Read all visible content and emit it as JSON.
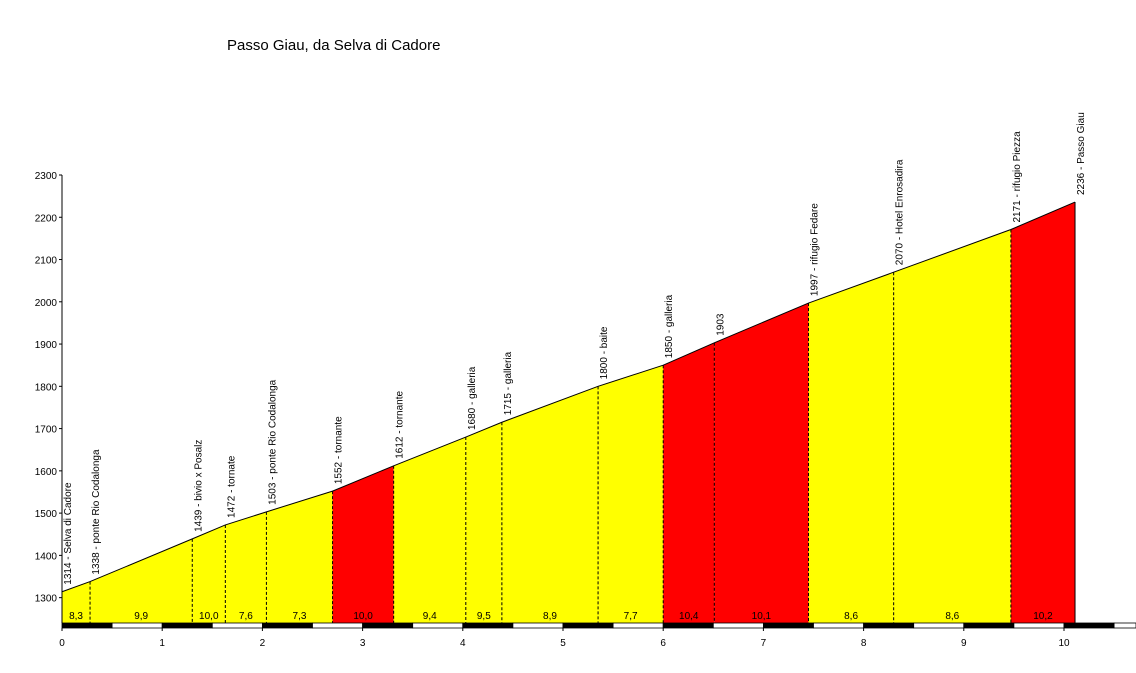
{
  "chart_data": {
    "type": "area",
    "title": "Passo Giau, da Selva di Cadore",
    "xlabel": "",
    "ylabel": "",
    "xlim": [
      0,
      10.7
    ],
    "ylim": [
      1240,
      2300
    ],
    "x_ticks": [
      "0",
      "1",
      "2",
      "3",
      "4",
      "5",
      "6",
      "7",
      "8",
      "9",
      "10"
    ],
    "y_ticks": [
      "1300",
      "1400",
      "1500",
      "1600",
      "1700",
      "1800",
      "1900",
      "2000",
      "2100",
      "2200",
      "2300"
    ],
    "points": [
      {
        "x": 0.0,
        "y": 1314,
        "label": "1314 - Selva di Cadore"
      },
      {
        "x": 0.28,
        "y": 1338,
        "label": "1338 - ponte Rio Codalonga"
      },
      {
        "x": 1.3,
        "y": 1439,
        "label": "1439 - bivio x Posalz"
      },
      {
        "x": 1.63,
        "y": 1472,
        "label": "1472 - tornate"
      },
      {
        "x": 2.04,
        "y": 1503,
        "label": "1503 - ponte Rio Codalonga"
      },
      {
        "x": 2.7,
        "y": 1552,
        "label": "1552 - tornante"
      },
      {
        "x": 3.31,
        "y": 1612,
        "label": "1612 - tornante"
      },
      {
        "x": 4.03,
        "y": 1680,
        "label": "1680 - galleria"
      },
      {
        "x": 4.39,
        "y": 1715,
        "label": "1715 - galleria"
      },
      {
        "x": 5.35,
        "y": 1800,
        "label": "1800 - baite"
      },
      {
        "x": 6.0,
        "y": 1850,
        "label": "1850 - galleria"
      },
      {
        "x": 6.51,
        "y": 1903,
        "label": "1903"
      },
      {
        "x": 7.45,
        "y": 1997,
        "label": "1997 - rifugio Fedare"
      },
      {
        "x": 8.3,
        "y": 2070,
        "label": "2070 - Hotel Enrosadira"
      },
      {
        "x": 9.47,
        "y": 2171,
        "label": "2171 - rifugio Piezza"
      },
      {
        "x": 10.11,
        "y": 2236,
        "label": "2236 - Passo Giau"
      }
    ],
    "segments": [
      {
        "gradient": "8,3",
        "color": "#ffff00"
      },
      {
        "gradient": "9,9",
        "color": "#ffff00"
      },
      {
        "gradient": "10,0",
        "color": "#ffff00"
      },
      {
        "gradient": "7,6",
        "color": "#ffff00"
      },
      {
        "gradient": "7,3",
        "color": "#ffff00"
      },
      {
        "gradient": "10,0",
        "color": "#ff0000"
      },
      {
        "gradient": "9,4",
        "color": "#ffff00"
      },
      {
        "gradient": "9,5",
        "color": "#ffff00"
      },
      {
        "gradient": "8,9",
        "color": "#ffff00"
      },
      {
        "gradient": "7,7",
        "color": "#ffff00"
      },
      {
        "gradient": "10,4",
        "color": "#ff0000"
      },
      {
        "gradient": "10,1",
        "color": "#ff0000"
      },
      {
        "gradient": "8,6",
        "color": "#ffff00"
      },
      {
        "gradient": "8,6",
        "color": "#ffff00"
      },
      {
        "gradient": "10,2",
        "color": "#ff0000"
      }
    ],
    "grid": false,
    "legend": "none"
  }
}
